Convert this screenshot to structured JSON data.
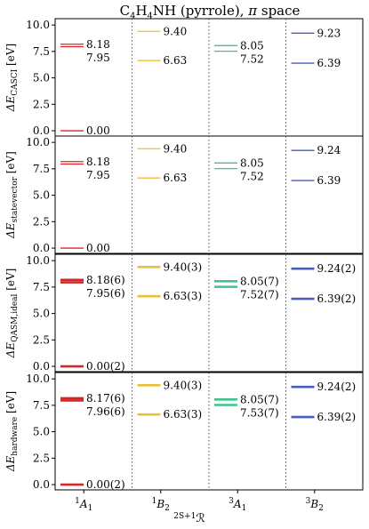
{
  "chart_data": {
    "type": "level-diagram",
    "title": "C$_4$H$_4$NH (pyrrole), $\\pi$ space",
    "x_categories": [
      {
        "base": "A",
        "sup": "1",
        "sub": "1"
      },
      {
        "base": "B",
        "sup": "1",
        "sub": "2"
      },
      {
        "base": "A",
        "sup": "3",
        "sub": "1"
      },
      {
        "base": "B",
        "sup": "3",
        "sub": "2"
      }
    ],
    "xlabel": {
      "sup": "2S+1",
      "base": "ℛ"
    },
    "ylim": [
      -0.5,
      10.6
    ],
    "yticks": [
      "0.0",
      "2.5",
      "5.0",
      "7.5",
      "10.0"
    ],
    "yticks_values": [
      0.0,
      2.5,
      5.0,
      7.5,
      10.0
    ],
    "colors": [
      "#d62728",
      "#e8c13a",
      "#3fc48e",
      "#4a5bc4"
    ],
    "panels": [
      {
        "ylabel": {
          "base": "ΔE",
          "sub": "CASCI",
          "unit": " [eV]"
        },
        "levels": [
          {
            "cat": 0,
            "value": 8.18,
            "label": "8.18"
          },
          {
            "cat": 0,
            "value": 7.95,
            "label": "7.95"
          },
          {
            "cat": 0,
            "value": 0.0,
            "label": "0.00"
          },
          {
            "cat": 1,
            "value": 9.4,
            "label": "9.40"
          },
          {
            "cat": 1,
            "value": 6.63,
            "label": "6.63"
          },
          {
            "cat": 2,
            "value": 8.05,
            "label": "8.05"
          },
          {
            "cat": 2,
            "value": 7.52,
            "label": "7.52"
          },
          {
            "cat": 3,
            "value": 9.23,
            "label": "9.23"
          },
          {
            "cat": 3,
            "value": 6.39,
            "label": "6.39"
          }
        ]
      },
      {
        "ylabel": {
          "base": "ΔE",
          "sub": "statevector",
          "unit": " [eV]"
        },
        "levels": [
          {
            "cat": 0,
            "value": 8.18,
            "label": "8.18"
          },
          {
            "cat": 0,
            "value": 7.95,
            "label": "7.95"
          },
          {
            "cat": 0,
            "value": 0.0,
            "label": "0.00"
          },
          {
            "cat": 1,
            "value": 9.4,
            "label": "9.40"
          },
          {
            "cat": 1,
            "value": 6.63,
            "label": "6.63"
          },
          {
            "cat": 2,
            "value": 8.05,
            "label": "8.05"
          },
          {
            "cat": 2,
            "value": 7.52,
            "label": "7.52"
          },
          {
            "cat": 3,
            "value": 9.24,
            "label": "9.24"
          },
          {
            "cat": 3,
            "value": 6.39,
            "label": "6.39"
          }
        ]
      },
      {
        "ylabel": {
          "base": "ΔE",
          "sub": "QASM,ideal",
          "unit": " [eV]"
        },
        "levels": [
          {
            "cat": 0,
            "value": 8.18,
            "label": "8.18(6)"
          },
          {
            "cat": 0,
            "value": 7.95,
            "label": "7.95(6)"
          },
          {
            "cat": 0,
            "value": 0.0,
            "label": "0.00(2)"
          },
          {
            "cat": 1,
            "value": 9.4,
            "label": "9.40(3)"
          },
          {
            "cat": 1,
            "value": 6.63,
            "label": "6.63(3)"
          },
          {
            "cat": 2,
            "value": 8.05,
            "label": "8.05(7)"
          },
          {
            "cat": 2,
            "value": 7.52,
            "label": "7.52(7)"
          },
          {
            "cat": 3,
            "value": 9.24,
            "label": "9.24(2)"
          },
          {
            "cat": 3,
            "value": 6.39,
            "label": "6.39(2)"
          }
        ]
      },
      {
        "ylabel": {
          "base": "ΔE",
          "sub": "hardware",
          "unit": " [eV]"
        },
        "levels": [
          {
            "cat": 0,
            "value": 8.17,
            "label": "8.17(6)"
          },
          {
            "cat": 0,
            "value": 7.96,
            "label": "7.96(6)"
          },
          {
            "cat": 0,
            "value": 0.0,
            "label": "0.00(2)"
          },
          {
            "cat": 1,
            "value": 9.4,
            "label": "9.40(3)"
          },
          {
            "cat": 1,
            "value": 6.63,
            "label": "6.63(3)"
          },
          {
            "cat": 2,
            "value": 8.05,
            "label": "8.05(7)"
          },
          {
            "cat": 2,
            "value": 7.53,
            "label": "7.53(7)"
          },
          {
            "cat": 3,
            "value": 9.24,
            "label": "9.24(2)"
          },
          {
            "cat": 3,
            "value": 6.39,
            "label": "6.39(2)"
          }
        ]
      }
    ]
  }
}
